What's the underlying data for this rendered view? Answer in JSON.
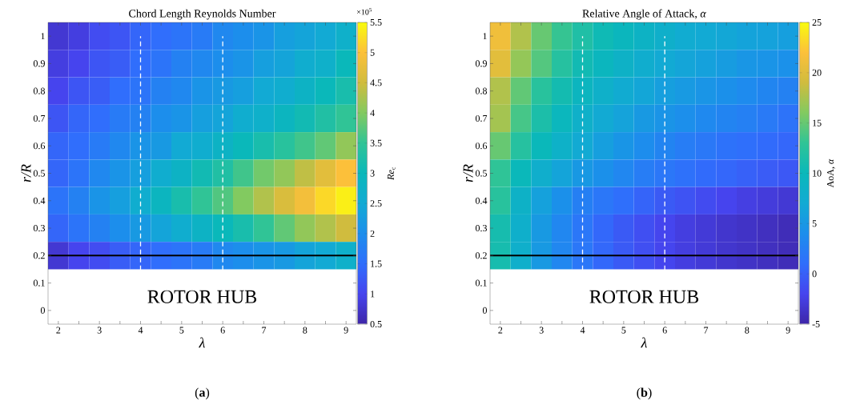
{
  "chart_data": [
    {
      "type": "heatmap",
      "title": "Chord Length Reynolds Number",
      "xlabel": "λ",
      "ylabel": "r/R",
      "clabel": "*Re*$_{c}$",
      "categories": [
        "2",
        null,
        "3",
        null,
        "4",
        null,
        "5",
        null,
        "6",
        null,
        "7",
        null,
        "8",
        null,
        "9"
      ],
      "y_categories": [
        "1",
        "0.9",
        "0.8",
        "0.7",
        "0.6",
        "0.5",
        "0.4",
        "0.3",
        "0.2",
        "0.1",
        "0"
      ],
      "cells": [
        [
          0.8,
          0.9,
          1.1,
          1.2,
          1.4,
          1.5,
          1.6,
          1.7,
          1.9,
          2.0,
          2.1,
          2.3,
          2.4,
          2.5,
          2.7
        ],
        [
          0.9,
          1.0,
          1.2,
          1.3,
          1.5,
          1.6,
          1.8,
          1.9,
          2.0,
          2.1,
          2.3,
          2.4,
          2.6,
          2.7,
          3.0
        ],
        [
          1.0,
          1.2,
          1.3,
          1.5,
          1.6,
          1.8,
          1.9,
          2.1,
          2.2,
          2.3,
          2.5,
          2.6,
          2.8,
          3.0,
          3.2
        ],
        [
          1.2,
          1.4,
          1.5,
          1.7,
          1.8,
          2.0,
          2.1,
          2.3,
          2.4,
          2.6,
          2.7,
          2.9,
          3.1,
          3.3,
          3.5
        ],
        [
          1.4,
          1.5,
          1.7,
          1.9,
          2.1,
          2.2,
          2.5,
          2.6,
          2.8,
          3.0,
          3.2,
          3.4,
          3.6,
          3.8,
          4.1
        ],
        [
          1.4,
          1.6,
          1.9,
          2.1,
          2.3,
          2.6,
          2.8,
          3.1,
          3.3,
          3.6,
          3.9,
          4.1,
          4.4,
          4.7,
          5.0
        ],
        [
          1.6,
          1.8,
          2.1,
          2.3,
          2.6,
          2.9,
          3.2,
          3.5,
          3.7,
          4.0,
          4.3,
          4.6,
          4.9,
          5.2,
          5.4
        ],
        [
          1.4,
          1.6,
          1.8,
          2.0,
          2.2,
          2.4,
          2.6,
          2.8,
          3.0,
          3.2,
          3.5,
          3.8,
          4.1,
          4.3,
          4.5
        ],
        [
          0.8,
          1.0,
          1.1,
          1.3,
          1.4,
          1.5,
          1.6,
          1.7,
          1.9,
          2.0,
          2.1,
          2.2,
          2.4,
          2.5,
          2.7
        ],
        [
          null,
          null,
          null,
          null,
          null,
          null,
          null,
          null,
          null,
          null,
          null,
          null,
          null,
          null,
          null
        ],
        [
          null,
          null,
          null,
          null,
          null,
          null,
          null,
          null,
          null,
          null,
          null,
          null,
          null,
          null,
          null
        ]
      ],
      "clim": [
        0.5,
        5.5
      ],
      "cticks": [
        0.5,
        1,
        1.5,
        2,
        2.5,
        3,
        3.5,
        4,
        4.5,
        5,
        5.5
      ],
      "ref_lines": [
        {
          "axis": "x",
          "value": "4",
          "color": "#ffffff",
          "line_style": "dashed"
        },
        {
          "axis": "x",
          "value": "6",
          "color": "#ffffff",
          "line_style": "dashed"
        },
        {
          "axis": "y",
          "value": "0.2",
          "color": "#000000",
          "line_style": "solid"
        }
      ],
      "annotations": [
        "×10$^{5}$",
        "ROTOR HUB",
        "(**a**)"
      ]
    },
    {
      "type": "heatmap",
      "title": "Relative Angle of Attack, *α*",
      "xlabel": "λ",
      "ylabel": "r/R",
      "clabel": "AoA, *α*",
      "categories": [
        "2",
        null,
        "3",
        null,
        "4",
        null,
        "5",
        null,
        "6",
        null,
        "7",
        null,
        "8",
        null,
        "9"
      ],
      "y_categories": [
        "1",
        "0.9",
        "0.8",
        "0.7",
        "0.6",
        "0.5",
        "0.4",
        "0.3",
        "0.2",
        "0.1",
        "0"
      ],
      "cells": [
        [
          21.2,
          17.8,
          15,
          13.2,
          11.7,
          10.4,
          9.6,
          8.8,
          8.1,
          7.4,
          7,
          6.7,
          6.3,
          6.1,
          5.8
        ],
        [
          20.2,
          16.7,
          14.3,
          12.2,
          10.6,
          9.5,
          8.6,
          7.7,
          7.0,
          6.5,
          6.0,
          5.5,
          4.9,
          4.6,
          4.3
        ],
        [
          17.8,
          14.8,
          12.4,
          10.8,
          9.4,
          8.3,
          7.3,
          6.6,
          5.8,
          5.3,
          4.7,
          4.2,
          3.7,
          3.2,
          2.8
        ],
        [
          17.3,
          13.8,
          11.4,
          9.7,
          8.3,
          7.1,
          6.2,
          5.2,
          4.6,
          4.1,
          3.5,
          3.1,
          2.7,
          2.1,
          1.5
        ],
        [
          15,
          12.2,
          10,
          8.4,
          7.1,
          5.8,
          4.8,
          3.9,
          3.1,
          2.4,
          1.9,
          1.4,
          1.1,
          0.8,
          0.5
        ],
        [
          12.9,
          10,
          7.9,
          6.4,
          5.1,
          4.2,
          3.3,
          2.4,
          1.8,
          1.3,
          0.8,
          0.5,
          0.1,
          -0.3,
          -0.6
        ],
        [
          12.4,
          8.6,
          6.0,
          4.2,
          2.6,
          1.8,
          1.1,
          0.3,
          -0.4,
          -0.9,
          -1.5,
          -2.0,
          -2.5,
          -2.8,
          -3.1
        ],
        [
          11,
          8,
          5.2,
          3.3,
          1.8,
          0.6,
          -0.4,
          -1.2,
          -1.9,
          -2.6,
          -3.0,
          -3.4,
          -3.7,
          -4.0,
          -4.3
        ],
        [
          11,
          8,
          5.2,
          3.3,
          1.8,
          0.6,
          -0.4,
          -1.2,
          -1.9,
          -2.6,
          -3.0,
          -3.4,
          -3.7,
          -4.0,
          -4.3
        ],
        [
          null,
          null,
          null,
          null,
          null,
          null,
          null,
          null,
          null,
          null,
          null,
          null,
          null,
          null,
          null
        ],
        [
          null,
          null,
          null,
          null,
          null,
          null,
          null,
          null,
          null,
          null,
          null,
          null,
          null,
          null,
          null
        ]
      ],
      "clim": [
        -5,
        25
      ],
      "cticks": [
        -5,
        0,
        5,
        10,
        15,
        20,
        25
      ],
      "ref_lines": [
        {
          "axis": "x",
          "value": "4",
          "color": "#ffffff",
          "line_style": "dashed"
        },
        {
          "axis": "x",
          "value": "6",
          "color": "#ffffff",
          "line_style": "dashed"
        },
        {
          "axis": "y",
          "value": "0.2",
          "color": "#000000",
          "line_style": "solid"
        }
      ],
      "annotations": [
        "ROTOR HUB",
        "(**b**)"
      ]
    }
  ]
}
